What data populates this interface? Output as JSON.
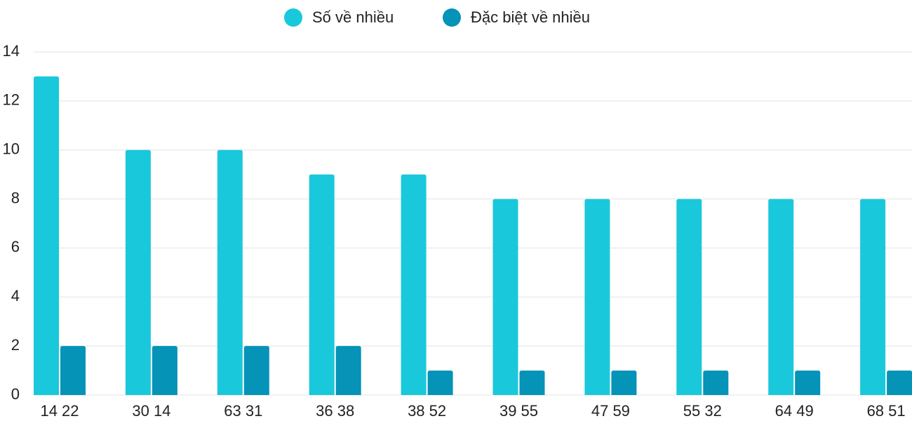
{
  "chart_data": {
    "type": "bar",
    "categories": [
      "14 22",
      "30 14",
      "63 31",
      "36 38",
      "38 52",
      "39 55",
      "47 59",
      "55 32",
      "64 49",
      "68 51"
    ],
    "series": [
      {
        "name": "Số về nhiều",
        "color": "#1ac8db",
        "values": [
          13,
          10,
          10,
          9,
          9,
          8,
          8,
          8,
          8,
          8
        ]
      },
      {
        "name": "Đặc biệt về nhiều",
        "color": "#0593b8",
        "values": [
          2,
          2,
          2,
          2,
          1,
          1,
          1,
          1,
          1,
          1
        ]
      }
    ],
    "ylim": [
      0,
      14
    ],
    "yticks": [
      0,
      2,
      4,
      6,
      8,
      10,
      12,
      14
    ],
    "grid": true,
    "legend": "top"
  }
}
